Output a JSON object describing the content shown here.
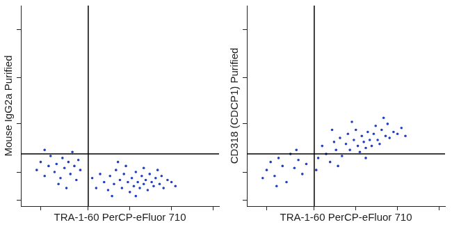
{
  "chart_data": [
    {
      "type": "scatter",
      "x_label": "TRA-1-60 PerCP-eFluor 710",
      "y_label": "Mouse IgG2a Purified",
      "xlim": [
        0,
        100
      ],
      "ylim": [
        0,
        100
      ],
      "xticks": [
        10,
        34,
        55,
        76,
        97
      ],
      "yticks": [
        3,
        17,
        41,
        64,
        88
      ],
      "tick_labels": false,
      "grid": false,
      "color": "#1f3fbf",
      "marker": "circle",
      "gate": {
        "x": 34,
        "y": 26
      },
      "x": [
        8,
        10,
        12,
        14,
        15,
        17,
        18,
        20,
        21,
        22,
        24,
        25,
        26,
        27,
        28,
        29,
        30,
        12,
        19,
        23,
        36,
        38,
        40,
        42,
        44,
        45,
        47,
        48,
        50,
        51,
        52,
        54,
        55,
        56,
        57,
        58,
        59,
        60,
        61,
        62,
        63,
        64,
        65,
        66,
        67,
        68,
        70,
        71,
        72,
        74,
        76,
        78,
        53,
        46,
        62,
        58,
        69,
        49
      ],
      "values": [
        18,
        22,
        15,
        20,
        25,
        17,
        21,
        14,
        24,
        19,
        22,
        16,
        27,
        20,
        13,
        23,
        18,
        28,
        11,
        9,
        14,
        9,
        16,
        12,
        8,
        15,
        11,
        18,
        13,
        9,
        16,
        12,
        7,
        14,
        10,
        17,
        12,
        9,
        15,
        11,
        13,
        8,
        16,
        12,
        10,
        14,
        11,
        15,
        9,
        13,
        12,
        10,
        20,
        5,
        19,
        5,
        18,
        22
      ]
    },
    {
      "type": "scatter",
      "x_label": "TRA-1-60 PerCP-eFluor 710",
      "y_label": "CD318 (CDCP1) Purified",
      "xlim": [
        0,
        100
      ],
      "ylim": [
        0,
        100
      ],
      "xticks": [
        10,
        34,
        55,
        76,
        97
      ],
      "yticks": [
        3,
        17,
        41,
        64,
        88
      ],
      "tick_labels": false,
      "grid": false,
      "color": "#1f3fbf",
      "marker": "circle",
      "gate": {
        "x": 34,
        "y": 26
      },
      "x": [
        10,
        12,
        14,
        16,
        18,
        20,
        22,
        24,
        26,
        28,
        30,
        15,
        25,
        8,
        36,
        38,
        40,
        42,
        44,
        45,
        47,
        48,
        50,
        51,
        52,
        54,
        55,
        56,
        57,
        58,
        59,
        60,
        61,
        62,
        63,
        64,
        65,
        66,
        67,
        68,
        70,
        71,
        72,
        74,
        76,
        78,
        80,
        53,
        46,
        60,
        69,
        35,
        43
      ],
      "values": [
        18,
        22,
        15,
        24,
        20,
        12,
        26,
        19,
        23,
        16,
        21,
        10,
        28,
        14,
        24,
        30,
        26,
        22,
        32,
        28,
        34,
        25,
        31,
        36,
        28,
        33,
        38,
        30,
        27,
        35,
        32,
        29,
        37,
        33,
        30,
        36,
        40,
        33,
        31,
        38,
        35,
        41,
        34,
        37,
        36,
        39,
        35,
        42,
        20,
        24,
        44,
        18,
        38
      ]
    }
  ]
}
